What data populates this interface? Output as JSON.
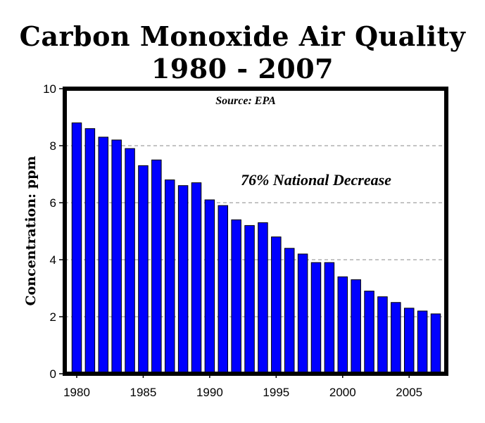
{
  "chart_data": {
    "type": "bar",
    "title_line1": "Carbon Monoxide Air Quality",
    "title_line2": "1980 - 2007",
    "ylabel": "Concentration: ppm",
    "xlabel": "",
    "source": "Source: EPA",
    "annotation": "76% National Decrease",
    "ylim": [
      0,
      10
    ],
    "y_ticks": [
      "0",
      "2",
      "4",
      "6",
      "8",
      "10"
    ],
    "x_ticks": [
      "1980",
      "1985",
      "1990",
      "1995",
      "2000",
      "2005"
    ],
    "grid": "horizontal dashed",
    "bar_color": "#0000ff",
    "categories": [
      1980,
      1981,
      1982,
      1983,
      1984,
      1985,
      1986,
      1987,
      1988,
      1989,
      1990,
      1991,
      1992,
      1993,
      1994,
      1995,
      1996,
      1997,
      1998,
      1999,
      2000,
      2001,
      2002,
      2003,
      2004,
      2005,
      2006,
      2007
    ],
    "values": [
      8.8,
      8.6,
      8.3,
      8.2,
      7.9,
      7.3,
      7.5,
      6.8,
      6.6,
      6.7,
      6.1,
      5.9,
      5.4,
      5.2,
      5.3,
      4.8,
      4.4,
      4.2,
      3.9,
      3.9,
      3.4,
      3.3,
      2.9,
      2.7,
      2.5,
      2.3,
      2.2,
      2.1
    ]
  }
}
